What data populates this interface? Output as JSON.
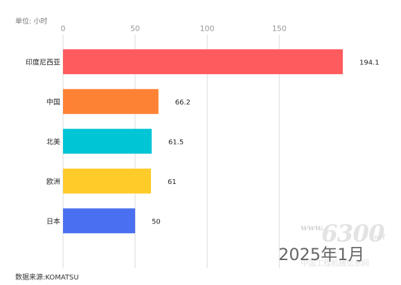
{
  "unit_label": "单位: 小时",
  "source_label": "数据来源:KOMATSU",
  "period_label": "2025年1月",
  "watermark": {
    "www": "www.",
    "number": "6300",
    "net": "net",
    "site": "中国工程机械信息网"
  },
  "chart_data": {
    "type": "bar",
    "orientation": "horizontal",
    "categories": [
      "印度尼西亚",
      "中国",
      "北美",
      "欧洲",
      "日本"
    ],
    "values": [
      194.1,
      66.2,
      61.5,
      61,
      50
    ],
    "value_labels": [
      "194.1",
      "66.2",
      "61.5",
      "61",
      "50"
    ],
    "bar_colors": [
      "#fe5b5e",
      "#fe8234",
      "#00c5d5",
      "#ffcb28",
      "#4a6ff0"
    ],
    "xlim": [
      0,
      194.1
    ],
    "x_ticks": [
      0,
      50,
      100,
      150
    ],
    "x_tick_labels": [
      "0",
      "50",
      "100",
      "150"
    ],
    "grid": true,
    "axis_position": "top"
  }
}
